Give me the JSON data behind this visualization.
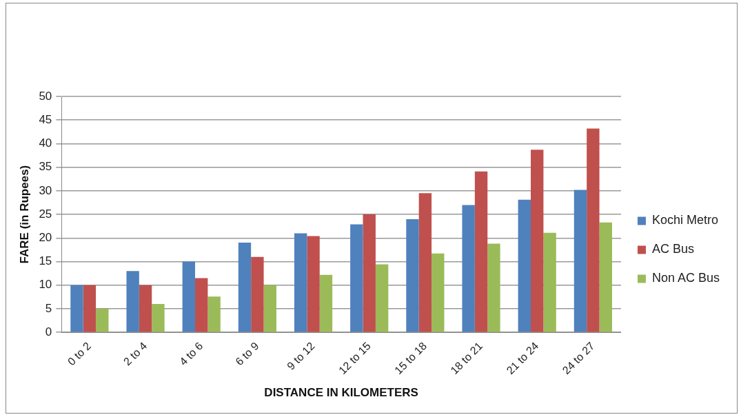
{
  "chart_data": {
    "type": "bar",
    "xlabel": "DISTANCE IN KILOMETERS",
    "ylabel": "FARE (in Rupees)",
    "categories": [
      "0 to 2",
      "2 to 4",
      "4 to 6",
      "6 to 9",
      "9 to 12",
      "12 to 15",
      "15 to 18",
      "18 to 21",
      "21 to 24",
      "24 to 27"
    ],
    "series": [
      {
        "name": "Kochi Metro",
        "color": "#4f81bd",
        "values": [
          10,
          13,
          15,
          19,
          21,
          22.9,
          24,
          27,
          28.1,
          30.2
        ]
      },
      {
        "name": "AC Bus",
        "color": "#c0504d",
        "values": [
          10,
          10,
          11.5,
          16,
          20.4,
          25,
          29.5,
          34.1,
          38.7,
          43.2
        ]
      },
      {
        "name": "Non AC Bus",
        "color": "#9bbb59",
        "values": [
          5,
          6,
          7.6,
          10,
          12.2,
          14.4,
          16.7,
          18.8,
          21.1,
          23.3
        ]
      }
    ],
    "ylim": [
      0,
      50
    ],
    "yticks": [
      0,
      5,
      10,
      15,
      20,
      25,
      30,
      35,
      40,
      45,
      50
    ],
    "grid": "y",
    "legend": "right"
  }
}
